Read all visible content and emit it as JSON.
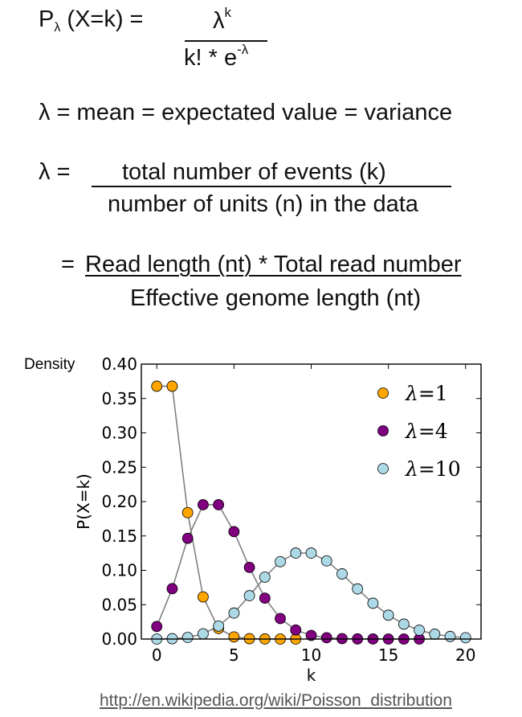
{
  "formulas": {
    "pmf": {
      "lhs_p": "P",
      "lhs_sub": "λ",
      "lhs_rest": "(X=k) =",
      "numerator_base": "λ",
      "numerator_sup": "k",
      "denominator_base": "k! * e",
      "denominator_sup": "-λ"
    },
    "lambda_identity": "λ = mean = expectated value = variance",
    "lambda_def": {
      "lhs": "λ =",
      "numerator": "total number of events (k)",
      "denominator": "number of units (n) in the data"
    },
    "coverage": {
      "lhs": "=",
      "numerator": "Read length (nt) * Total read number",
      "denominator": "Effective genome length (nt)"
    }
  },
  "density_label": "Density",
  "source_link": "http://en.wikipedia.org/wiki/Poisson_distribution",
  "chart_data": {
    "type": "line",
    "xlabel": "k",
    "ylabel": "P(X=k)",
    "xlim": [
      -1,
      21
    ],
    "ylim": [
      0,
      0.4
    ],
    "xticks": [
      0,
      5,
      10,
      15,
      20
    ],
    "yticks": [
      "0.00",
      "0.05",
      "0.10",
      "0.15",
      "0.20",
      "0.25",
      "0.30",
      "0.35",
      "0.40"
    ],
    "grid": false,
    "legend_placement": "top-right",
    "line_color": "#808080",
    "series": [
      {
        "name": "λ=1",
        "legend_lambda": "λ",
        "legend_value": "=1",
        "color": "#FFA500",
        "x": [
          0,
          1,
          2,
          3,
          4,
          5,
          6,
          7,
          8,
          9
        ],
        "values": [
          0.3679,
          0.3679,
          0.1839,
          0.0613,
          0.0153,
          0.0031,
          0.0005,
          0.0001,
          0.0,
          0.0
        ]
      },
      {
        "name": "λ=4",
        "legend_lambda": "λ",
        "legend_value": "=4",
        "color": "#800080",
        "x": [
          0,
          1,
          2,
          3,
          4,
          5,
          6,
          7,
          8,
          9,
          10,
          11,
          12,
          13,
          14,
          15,
          16,
          17
        ],
        "values": [
          0.0183,
          0.0733,
          0.1465,
          0.1954,
          0.1954,
          0.1563,
          0.1042,
          0.0595,
          0.0298,
          0.0132,
          0.0053,
          0.0019,
          0.0006,
          0.0002,
          0.0001,
          0.0,
          0.0,
          0.0
        ]
      },
      {
        "name": "λ=10",
        "legend_lambda": "λ",
        "legend_value": "=10",
        "color": "#ADD8E6",
        "x": [
          0,
          1,
          2,
          3,
          4,
          5,
          6,
          7,
          8,
          9,
          10,
          11,
          12,
          13,
          14,
          15,
          16,
          17,
          18,
          19,
          20
        ],
        "values": [
          0.0,
          0.0005,
          0.0023,
          0.0076,
          0.0189,
          0.0378,
          0.0631,
          0.0901,
          0.1126,
          0.1251,
          0.1251,
          0.1137,
          0.0948,
          0.0729,
          0.0521,
          0.0347,
          0.0217,
          0.0128,
          0.0071,
          0.0037,
          0.0019
        ]
      }
    ]
  }
}
